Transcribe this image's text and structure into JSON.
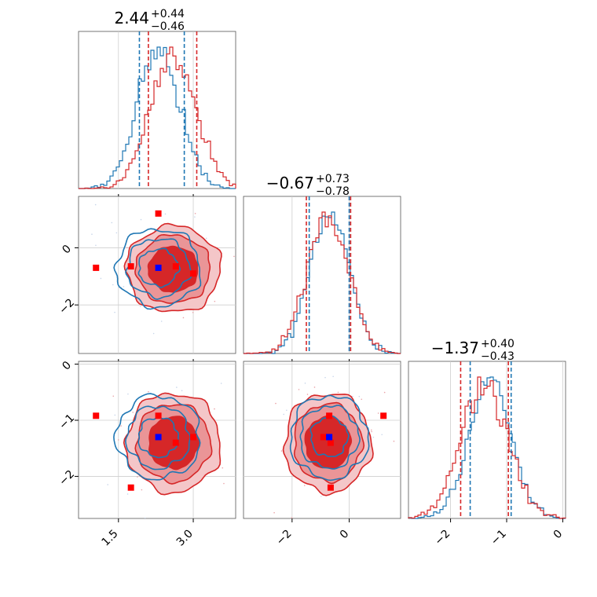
{
  "chart_data": {
    "type": "corner",
    "parameters": [
      {
        "name": "",
        "range": [
          0.7,
          3.85
        ],
        "title_main": "2.44",
        "title_plus": "+0.44",
        "title_minus": "−0.46",
        "ticks": [
          {
            "v": 1.5,
            "label": "1.5"
          },
          {
            "v": 3.0,
            "label": "3.0"
          }
        ],
        "quantiles": {
          "blue": [
            1.92,
            2.82
          ],
          "red": [
            2.1,
            3.07
          ]
        }
      },
      {
        "name": "",
        "range": [
          -3.7,
          1.8
        ],
        "title_main": "−0.67",
        "title_plus": "+0.73",
        "title_minus": "−0.78",
        "ticks": [
          {
            "v": -2,
            "label": "−2"
          },
          {
            "v": 0,
            "label": "0"
          }
        ],
        "quantiles": {
          "blue": [
            -1.4,
            0.0
          ],
          "red": [
            -1.5,
            0.05
          ]
        }
      },
      {
        "name": "",
        "range": [
          -2.75,
          0.05
        ],
        "title_main": "−1.37",
        "title_plus": "+0.40",
        "title_minus": "−0.43",
        "ticks": [
          {
            "v": -2,
            "label": "−2"
          },
          {
            "v": -1,
            "label": "−1"
          },
          {
            "v": 0,
            "label": "0"
          }
        ],
        "quantiles": {
          "blue": [
            -1.65,
            -0.92
          ],
          "red": [
            -1.82,
            -0.97
          ]
        }
      }
    ],
    "series": [
      {
        "name": "",
        "color": "#1f77b4",
        "center": [
          2.3,
          -0.7,
          -1.3
        ],
        "sigma": [
          0.42,
          0.68,
          0.37
        ],
        "marker": "blue"
      },
      {
        "name": "",
        "color": "#d62728",
        "center": [
          2.6,
          -0.75,
          -1.4
        ],
        "sigma": [
          0.45,
          0.72,
          0.42
        ],
        "marker": "red"
      }
    ],
    "markers": {
      "blue": [
        2.3,
        -0.7,
        -1.3
      ],
      "red": [
        [
          1.05,
          -0.7,
          -0.92
        ],
        [
          1.75,
          -0.65,
          -2.2
        ],
        [
          2.65,
          -0.65,
          -1.4
        ],
        [
          3.0,
          -0.9,
          -1.3
        ],
        [
          2.3,
          1.2,
          -0.92
        ]
      ]
    },
    "grid": true
  }
}
